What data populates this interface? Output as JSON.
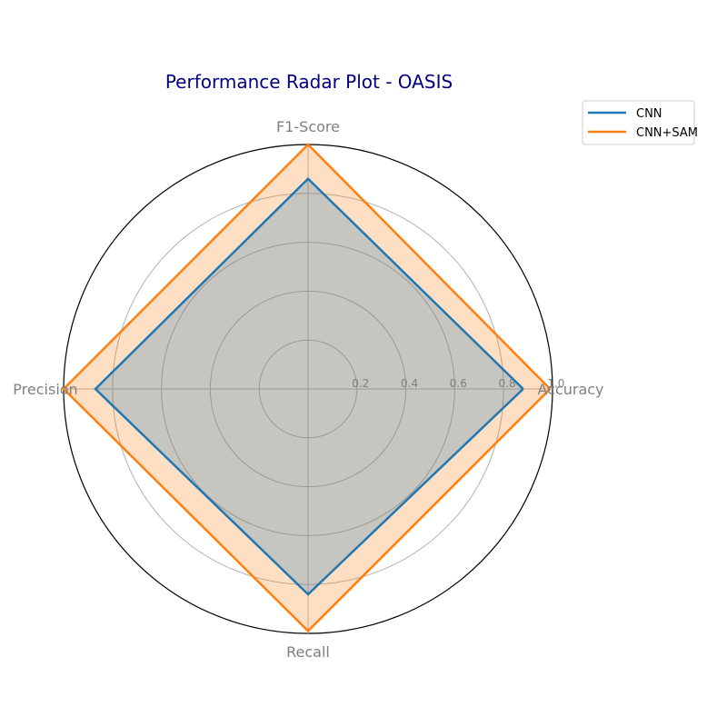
{
  "chart_data": {
    "type": "radar",
    "title": "Performance Radar Plot - OASIS",
    "axes": [
      "Accuracy",
      "F1-Score",
      "Precision",
      "Recall"
    ],
    "rticks": [
      "0.2",
      "0.4",
      "0.6",
      "0.8",
      "1.0"
    ],
    "rtick_values": [
      0.2,
      0.4,
      0.6,
      0.8,
      1.0
    ],
    "rlim": [
      0,
      1.0
    ],
    "grid": true,
    "legend_position": "top-right",
    "series": [
      {
        "name": "CNN",
        "values": [
          0.88,
          0.86,
          0.87,
          0.84
        ],
        "color": "#1f77b4"
      },
      {
        "name": "CNN+SAM",
        "values": [
          0.99,
          1.0,
          1.0,
          0.99
        ],
        "color": "#ff7f0e"
      }
    ]
  },
  "colors": {
    "title": "#000080",
    "axis_label": "#808080",
    "grid": "#b0b0b0",
    "outer_circle": "#000000"
  }
}
